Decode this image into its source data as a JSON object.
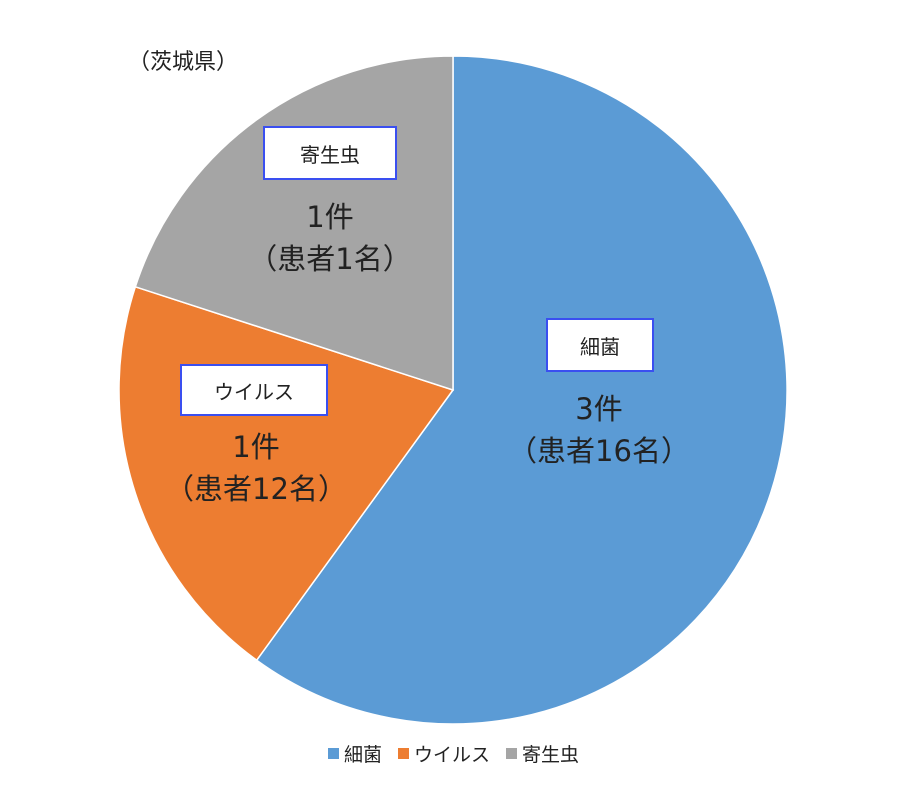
{
  "region": "（茨城県）",
  "chart_data": {
    "type": "pie",
    "categories": [
      "細菌",
      "ウイルス",
      "寄生虫"
    ],
    "values": [
      3,
      1,
      1
    ],
    "labels": [
      {
        "category": "細菌",
        "count": "3件",
        "patients": "（患者16名）"
      },
      {
        "category": "ウイルス",
        "count": "1件",
        "patients": "（患者12名）"
      },
      {
        "category": "寄生虫",
        "count": "1件",
        "patients": "（患者1名）"
      }
    ],
    "colors": [
      "#5b9bd5",
      "#ed7d31",
      "#a5a5a5"
    ],
    "start_angle_deg": 0,
    "direction": "clockwise",
    "legend_position": "bottom"
  }
}
